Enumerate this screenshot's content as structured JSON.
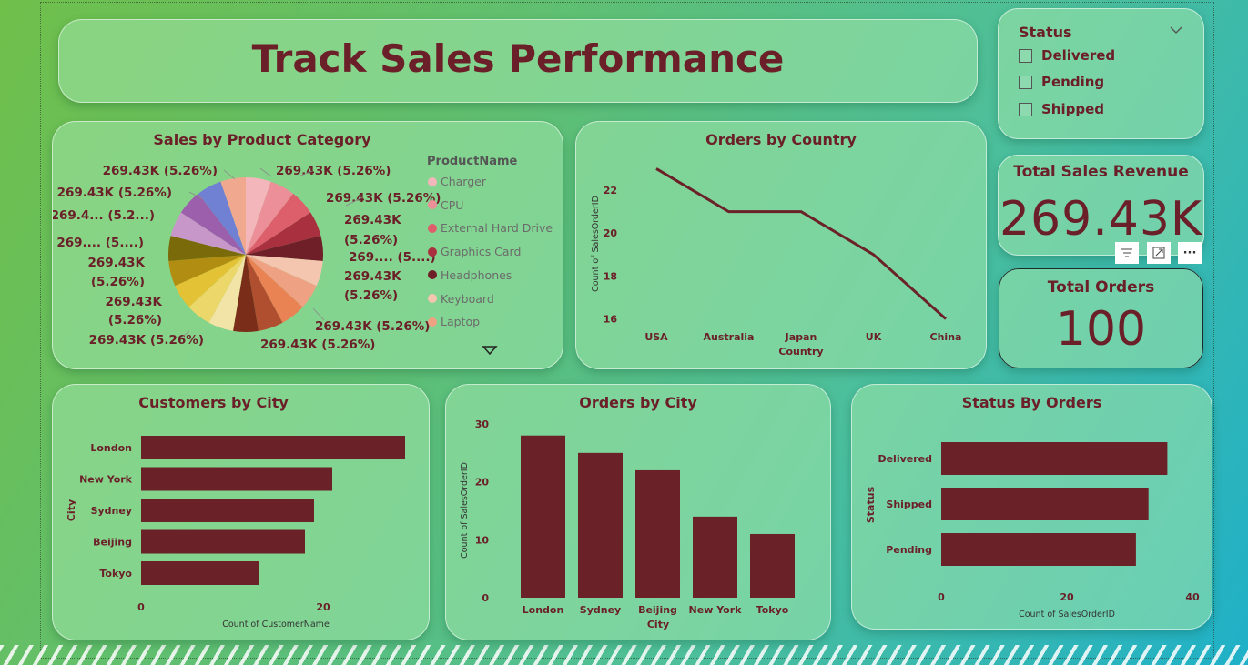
{
  "header": {
    "title": "Track Sales Performance"
  },
  "status_slicer": {
    "title": "Status",
    "options": [
      "Delivered",
      "Pending",
      "Shipped"
    ]
  },
  "kpi_revenue": {
    "title": "Total Sales Revenue",
    "value": "269.43K"
  },
  "kpi_orders": {
    "title": "Total Orders",
    "value": "100"
  },
  "visual_toolbar": {
    "filter_icon": "filter-icon",
    "focus_icon": "focus-mode-icon",
    "more_icon": "more-options-icon",
    "more_glyph": "···"
  },
  "colors": {
    "accent": "#6b1f28",
    "bar": "#6a2128"
  },
  "chart_data": [
    {
      "type": "pie",
      "title": "Sales by Product Category",
      "legend_title": "ProductName",
      "legend": [
        "Charger",
        "CPU",
        "External Hard Drive",
        "Graphics Card",
        "Headphones",
        "Keyboard",
        "Laptop"
      ],
      "slice_count": 19,
      "slice_value": 269.43,
      "slice_colors": [
        "#f3b6bb",
        "#ec8f98",
        "#de5f6c",
        "#a9303e",
        "#6e1f28",
        "#f4c6b0",
        "#eea283",
        "#e98353",
        "#b04f2f",
        "#7a2e1a",
        "#f2e3a6",
        "#ecd76a",
        "#e3c235",
        "#b18e12",
        "#7a6a0a",
        "#c697c8",
        "#9c5fac",
        "#7081d3",
        "#f0a98e"
      ],
      "labels": [
        "269.43K (5.26%)",
        "269.43K (5.26%)",
        "269.43K",
        "(5.26%)",
        "269.... (5....)",
        "269.43K",
        "(5.26%)",
        "269.43K (5.26%)",
        "269.43K (5.26%)",
        "269.43K (5.26%)",
        "269.43K",
        "(5.26%)",
        "269.43K",
        "(5.26%)",
        "269.... (5....)",
        "269.4... (5.2...)",
        "269.43K (5.26%)",
        "269.43K (5.26%)"
      ]
    },
    {
      "type": "line",
      "title": "Orders by Country",
      "xlabel": "Country",
      "ylabel": "Count of SalesOrderID",
      "categories": [
        "USA",
        "Australia",
        "Japan",
        "UK",
        "China"
      ],
      "values": [
        23,
        21,
        21,
        19,
        16
      ],
      "yticks": [
        16,
        18,
        20,
        22
      ],
      "ylim": [
        15.6,
        23.4
      ]
    },
    {
      "type": "bar",
      "orientation": "horizontal",
      "title": "Customers by City",
      "xlabel": "Count of CustomerName",
      "ylabel": "City",
      "categories": [
        "London",
        "New York",
        "Sydney",
        "Beijing",
        "Tokyo"
      ],
      "values": [
        29,
        21,
        19,
        18,
        13
      ],
      "xticks": [
        0,
        20
      ],
      "xlim": [
        0,
        30
      ]
    },
    {
      "type": "bar",
      "title": "Orders by City",
      "xlabel": "City",
      "ylabel": "Count of SalesOrderID",
      "categories": [
        "London",
        "Sydney",
        "Beijing",
        "New York",
        "Tokyo"
      ],
      "values": [
        28,
        25,
        22,
        14,
        11
      ],
      "yticks": [
        0,
        10,
        20,
        30
      ],
      "ylim": [
        0,
        30
      ]
    },
    {
      "type": "bar",
      "orientation": "horizontal",
      "title": "Status By Orders",
      "xlabel": "Count of SalesOrderID",
      "ylabel": "Status",
      "categories": [
        "Delivered",
        "Shipped",
        "Pending"
      ],
      "values": [
        36,
        33,
        31
      ],
      "xticks": [
        0,
        20,
        40
      ],
      "xlim": [
        0,
        40
      ]
    }
  ]
}
